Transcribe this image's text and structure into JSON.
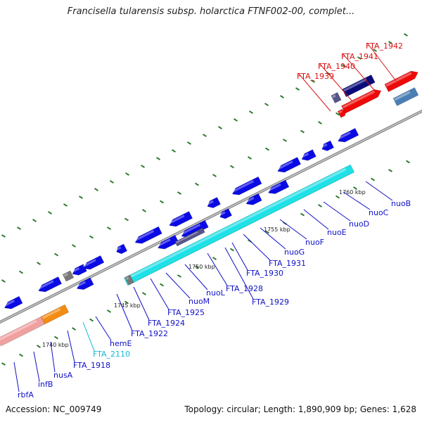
{
  "header": {
    "title": "Francisella tularensis subsp. holarctica FTNF002-00, complet..."
  },
  "footer": {
    "accession": "Accession: NC_009749",
    "stats": "Topology: circular; Length: 1,890,909 bp; Genes: 1,628"
  },
  "colors": {
    "backbone": "#8c8c8c",
    "gene_blue": "#0a0ae6",
    "gene_navy": "#0a0a7a",
    "gene_cyan": "#1fe0e6",
    "gene_red": "#ee0a0a",
    "gene_pink": "#f0a0a0",
    "gene_orange": "#f28c14",
    "gene_steel": "#4a7fb5",
    "gene_slate": "#55558a",
    "gene_gray": "#777777",
    "tick": "#2a7a2a",
    "label_blue": "#1010c8",
    "label_cyan": "#12b8d8",
    "label_red": "#d81010"
  },
  "scale_labels": [
    "1740 kbp",
    "1745 kbp",
    "1750 kbp",
    "1755 kbp",
    "1760 kbp"
  ],
  "gene_labels": [
    {
      "text": "rbfA",
      "color": "label_blue"
    },
    {
      "text": "infB",
      "color": "label_blue"
    },
    {
      "text": "nusA",
      "color": "label_blue"
    },
    {
      "text": "FTA_1918",
      "color": "label_blue"
    },
    {
      "text": "FTA_2110",
      "color": "label_cyan"
    },
    {
      "text": "hemE",
      "color": "label_blue"
    },
    {
      "text": "FTA_1922",
      "color": "label_blue"
    },
    {
      "text": "FTA_1924",
      "color": "label_blue"
    },
    {
      "text": "FTA_1925",
      "color": "label_blue"
    },
    {
      "text": "nuoM",
      "color": "label_blue"
    },
    {
      "text": "nuoL",
      "color": "label_blue"
    },
    {
      "text": "FTA_1928",
      "color": "label_blue"
    },
    {
      "text": "FTA_1929",
      "color": "label_blue"
    },
    {
      "text": "FTA_1930",
      "color": "label_blue"
    },
    {
      "text": "FTA_1931",
      "color": "label_blue"
    },
    {
      "text": "nuoG",
      "color": "label_blue"
    },
    {
      "text": "nuoF",
      "color": "label_blue"
    },
    {
      "text": "nuoE",
      "color": "label_blue"
    },
    {
      "text": "nuoD",
      "color": "label_blue"
    },
    {
      "text": "nuoC",
      "color": "label_blue"
    },
    {
      "text": "nuoB",
      "color": "label_blue"
    },
    {
      "text": "FTA_1939",
      "color": "label_red"
    },
    {
      "text": "FTA_1940",
      "color": "label_red"
    },
    {
      "text": "FTA_1941",
      "color": "label_red"
    },
    {
      "text": "FTA_1942",
      "color": "label_red"
    }
  ]
}
